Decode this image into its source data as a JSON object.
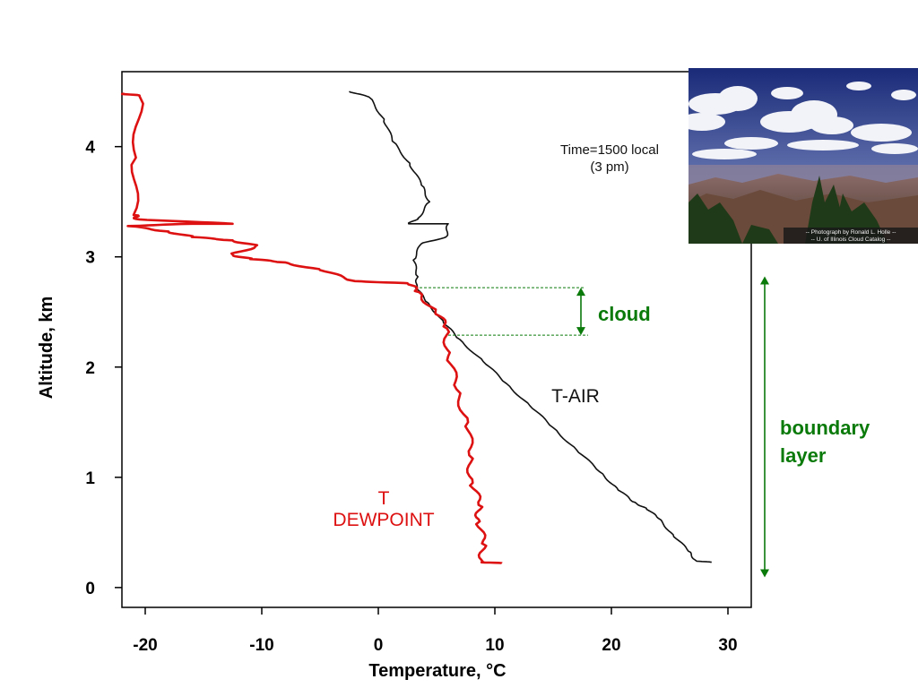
{
  "chart_data": {
    "type": "line",
    "xlabel": "Temperature, °C",
    "ylabel": "Altitude, km",
    "xlim": [
      -22,
      32
    ],
    "ylim": [
      -0.18,
      4.68
    ],
    "x_ticks": [
      -20,
      -10,
      0,
      10,
      20,
      30
    ],
    "y_ticks": [
      0,
      1,
      2,
      3,
      4
    ],
    "grid": false,
    "series": [
      {
        "name": "T-AIR",
        "color": "#111111",
        "points": [
          [
            28.6,
            0.23
          ],
          [
            27.3,
            0.24
          ],
          [
            26.6,
            0.33
          ],
          [
            25.3,
            0.48
          ],
          [
            24.0,
            0.63
          ],
          [
            23.0,
            0.72
          ],
          [
            21.8,
            0.78
          ],
          [
            20.5,
            0.9
          ],
          [
            19.0,
            1.05
          ],
          [
            17.0,
            1.25
          ],
          [
            15.0,
            1.45
          ],
          [
            13.0,
            1.65
          ],
          [
            11.0,
            1.85
          ],
          [
            9.0,
            2.05
          ],
          [
            7.0,
            2.25
          ],
          [
            5.6,
            2.4
          ],
          [
            4.3,
            2.58
          ],
          [
            3.2,
            2.72
          ],
          [
            3.4,
            2.82
          ],
          [
            3.0,
            2.97
          ],
          [
            3.7,
            3.12
          ],
          [
            5.8,
            3.18
          ],
          [
            6.0,
            3.3
          ],
          [
            4.2,
            3.3
          ],
          [
            2.6,
            3.3
          ],
          [
            3.4,
            3.35
          ],
          [
            4.4,
            3.5
          ],
          [
            3.7,
            3.65
          ],
          [
            2.7,
            3.85
          ],
          [
            1.2,
            4.05
          ],
          [
            0.5,
            4.25
          ],
          [
            -0.8,
            4.45
          ],
          [
            -2.5,
            4.5
          ]
        ]
      },
      {
        "name": "T DEWPOINT",
        "color": "#dd1111",
        "points": [
          [
            10.6,
            0.22
          ],
          [
            9.0,
            0.23
          ],
          [
            8.9,
            0.4
          ],
          [
            8.7,
            0.6
          ],
          [
            8.6,
            0.75
          ],
          [
            8.1,
            0.95
          ],
          [
            7.8,
            1.2
          ],
          [
            7.7,
            1.5
          ],
          [
            6.7,
            1.8
          ],
          [
            6.0,
            2.1
          ],
          [
            5.9,
            2.35
          ],
          [
            4.9,
            2.5
          ],
          [
            3.5,
            2.68
          ],
          [
            2.5,
            2.76
          ],
          [
            -2.0,
            2.78
          ],
          [
            -5.0,
            2.88
          ],
          [
            -8.0,
            2.95
          ],
          [
            -11.0,
            2.98
          ],
          [
            -12.5,
            3.02
          ],
          [
            -10.5,
            3.1
          ],
          [
            -12.5,
            3.15
          ],
          [
            -16.0,
            3.18
          ],
          [
            -18.0,
            3.23
          ],
          [
            -21.5,
            3.28
          ],
          [
            -16.0,
            3.3
          ],
          [
            -12.5,
            3.3
          ],
          [
            -20.5,
            3.34
          ],
          [
            -21.0,
            3.38
          ],
          [
            -20.8,
            3.9
          ],
          [
            -20.5,
            4.46
          ],
          [
            -21.8,
            4.48
          ]
        ]
      }
    ],
    "annotations": {
      "time_line1": "Time=1500 local",
      "time_line2": "(3 pm)",
      "t_air": "T-AIR",
      "t_dew_line1": "T",
      "t_dew_line2": "DEWPOINT",
      "cloud": "cloud",
      "boundary_line1": "boundary",
      "boundary_line2": "layer"
    },
    "cloud_range_km": [
      2.29,
      2.72
    ],
    "boundary_layer_range_km": [
      0.1,
      2.75
    ],
    "annotation_color": "#0a7a0a"
  },
  "photo": {
    "credit_line1": "-- Photograph by Ronald L. Holle --",
    "credit_line2": "-- U. of Illinois Cloud Catalog --"
  }
}
